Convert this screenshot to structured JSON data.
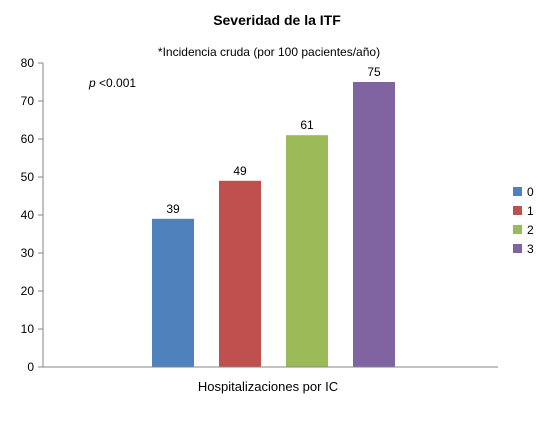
{
  "chart_data": {
    "type": "bar",
    "title": "Severidad de la ITF",
    "subtitle": "*Incidencia cruda (por 100 pacientes/año)",
    "annotation_italic": "p",
    "annotation_text": " <0.001",
    "xlabel": "Hospitalizaciones por IC",
    "ylabel": "",
    "ylim": [
      0,
      80
    ],
    "yticks": [
      0,
      10,
      20,
      30,
      40,
      50,
      60,
      70,
      80
    ],
    "grid": false,
    "legend_position": "right",
    "series": [
      {
        "name": "0",
        "value": 39,
        "color": "#4f81bd"
      },
      {
        "name": "1",
        "value": 49,
        "color": "#c0504d"
      },
      {
        "name": "2",
        "value": 61,
        "color": "#9bbb59"
      },
      {
        "name": "3",
        "value": 75,
        "color": "#8064a2"
      }
    ]
  }
}
